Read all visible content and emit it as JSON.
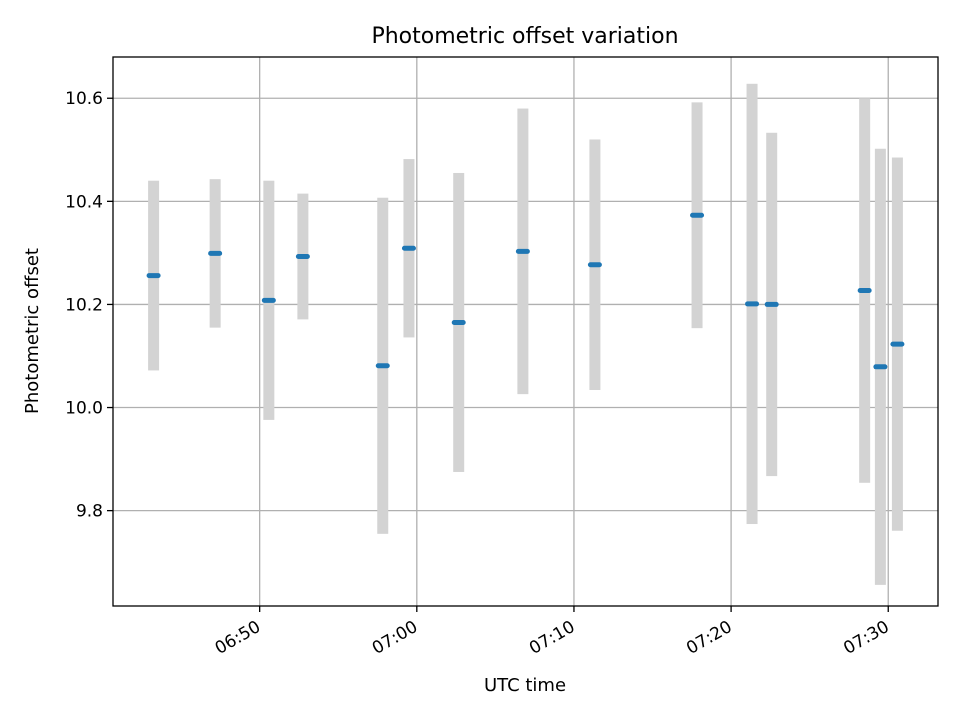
{
  "chart_data": {
    "type": "scatter",
    "title": "Photometric offset variation",
    "xlabel": "UTC time",
    "ylabel": "Photometric offset",
    "x_ticks": [
      "06:50",
      "07:00",
      "07:10",
      "07:20",
      "07:30"
    ],
    "y_ticks": [
      "9.8",
      "10.0",
      "10.2",
      "10.4",
      "10.6"
    ],
    "xlim": [
      "06:40:40",
      "07:33:10"
    ],
    "ylim": [
      9.615,
      10.68
    ],
    "grid": true,
    "errorbar_color": "#d3d3d3",
    "marker_color": "#1f77b4",
    "points": [
      {
        "time": "06:43:15",
        "value": 10.256,
        "err": 0.184
      },
      {
        "time": "06:47:10",
        "value": 10.299,
        "err": 0.144
      },
      {
        "time": "06:50:35",
        "value": 10.208,
        "err": 0.232
      },
      {
        "time": "06:52:45",
        "value": 10.293,
        "err": 0.122
      },
      {
        "time": "06:57:50",
        "value": 10.081,
        "err": 0.326
      },
      {
        "time": "06:59:30",
        "value": 10.309,
        "err": 0.173
      },
      {
        "time": "07:02:40",
        "value": 10.165,
        "err": 0.29
      },
      {
        "time": "07:06:45",
        "value": 10.303,
        "err": 0.277
      },
      {
        "time": "07:11:20",
        "value": 10.277,
        "err": 0.243
      },
      {
        "time": "07:17:50",
        "value": 10.373,
        "err": 0.219
      },
      {
        "time": "07:21:20",
        "value": 10.201,
        "err": 0.427
      },
      {
        "time": "07:22:35",
        "value": 10.2,
        "err": 0.333
      },
      {
        "time": "07:28:30",
        "value": 10.227,
        "err": 0.373
      },
      {
        "time": "07:29:30",
        "value": 10.079,
        "err": 0.423
      },
      {
        "time": "07:30:35",
        "value": 10.123,
        "err": 0.362
      }
    ]
  }
}
